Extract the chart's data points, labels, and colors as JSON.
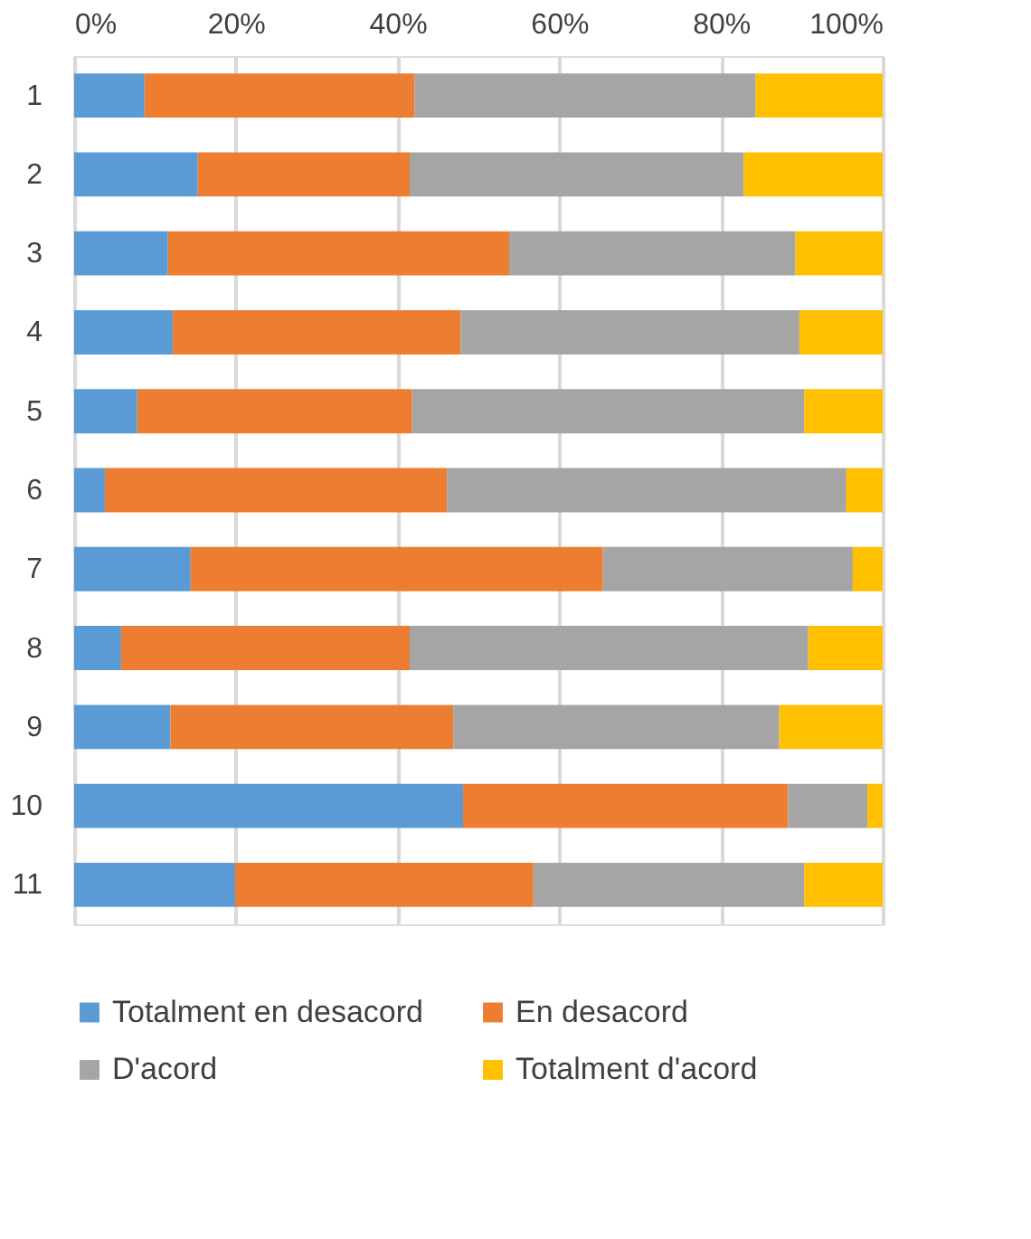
{
  "chart_data": {
    "type": "bar",
    "orientation": "horizontal",
    "stacked": true,
    "categories": [
      "1",
      "2",
      "3",
      "4",
      "5",
      "6",
      "7",
      "8",
      "9",
      "10",
      "11"
    ],
    "series": [
      {
        "name": "Totalment en desacord",
        "color": "#5b9bd5",
        "values": [
          8.7,
          15.3,
          11.6,
          12.2,
          7.8,
          3.8,
          14.4,
          5.8,
          11.9,
          48.1,
          19.9
        ]
      },
      {
        "name": "En desacord",
        "color": "#ed7d31",
        "values": [
          33.4,
          26.2,
          42.2,
          35.6,
          34.0,
          42.3,
          51.0,
          35.7,
          35.0,
          40.2,
          36.9
        ]
      },
      {
        "name": "D'acord",
        "color": "#a5a5a5",
        "values": [
          42.2,
          41.3,
          35.4,
          41.9,
          48.5,
          49.4,
          30.9,
          49.3,
          40.3,
          9.8,
          33.5
        ]
      },
      {
        "name": "Totalment d'acord",
        "color": "#ffc000",
        "values": [
          15.7,
          17.2,
          10.8,
          10.3,
          9.7,
          4.5,
          3.7,
          9.2,
          12.8,
          1.9,
          9.7
        ]
      }
    ],
    "xlim": [
      0,
      100
    ],
    "xticks": [
      {
        "value": 0,
        "label": "0%"
      },
      {
        "value": 20,
        "label": "20%"
      },
      {
        "value": 40,
        "label": "40%"
      },
      {
        "value": 60,
        "label": "60%"
      },
      {
        "value": 80,
        "label": "80%"
      },
      {
        "value": 100,
        "label": "100%"
      }
    ],
    "grid": "x",
    "legend": "bottom"
  }
}
